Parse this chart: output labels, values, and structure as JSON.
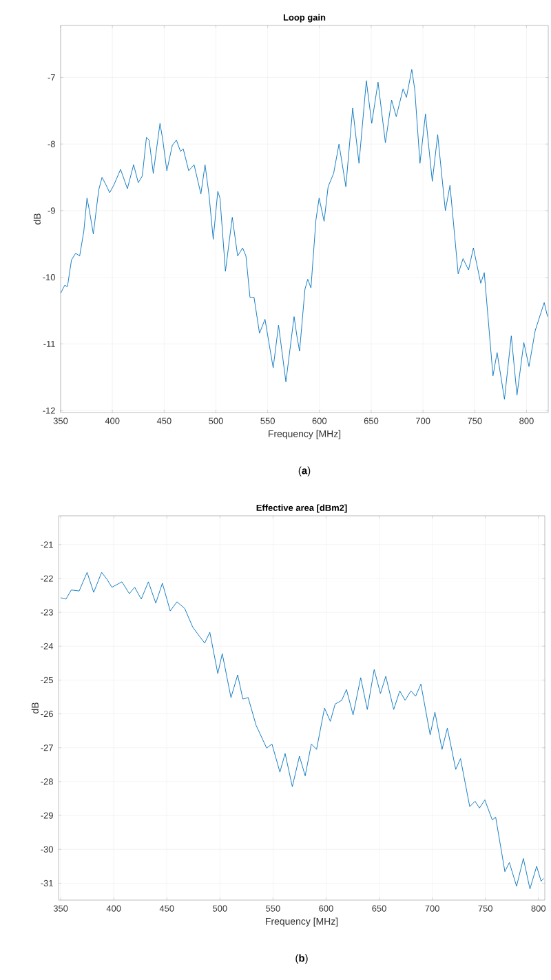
{
  "chart_data": [
    {
      "type": "line",
      "title": "Loop gain",
      "xlabel": "Frequency [MHz]",
      "ylabel": "dB",
      "color": "#0072bd",
      "grid": true,
      "annotations": [
        "(**a**)"
      ],
      "xlim": [
        350,
        821
      ],
      "ylim": [
        -12.03,
        -6.22
      ],
      "xticks": [
        350,
        400,
        450,
        500,
        550,
        600,
        650,
        700,
        750,
        800
      ],
      "yticks": [
        -12,
        -11,
        -10,
        -9,
        -8,
        -7
      ],
      "x": [
        350,
        354,
        356.6,
        360.5,
        364.5,
        368.4,
        372.4,
        375.5,
        377.6,
        381.6,
        386.8,
        390,
        393.4,
        397.4,
        401.3,
        407.9,
        414.5,
        420.5,
        425,
        428.9,
        432.9,
        435.5,
        439.5,
        446,
        448.7,
        452.6,
        457.9,
        461.8,
        465.8,
        468.4,
        473.7,
        478.9,
        485.5,
        489.5,
        493.4,
        497.4,
        501.8,
        503.9,
        509.2,
        515.8,
        521,
        525.8,
        529,
        532.9,
        536.8,
        542.1,
        547.4,
        555.3,
        560.5,
        567.6,
        575.5,
        578.2,
        580.8,
        586,
        588.7,
        591.8,
        596.6,
        599.7,
        604.5,
        608.4,
        613.7,
        618.9,
        625.5,
        632.1,
        638.2,
        645.3,
        650.5,
        656.6,
        663.7,
        669.7,
        674.2,
        680.8,
        684,
        689.2,
        692.1,
        697.1,
        702.4,
        709,
        714.2,
        721.6,
        726.1,
        734,
        738.7,
        744,
        748.7,
        755.8,
        759.2,
        767.6,
        771.6,
        778.7,
        785.3,
        790.8,
        797.4,
        802.4,
        808.4,
        817.1,
        820.3
      ],
      "values": [
        -10.24,
        -10.12,
        -10.14,
        -9.74,
        -9.64,
        -9.68,
        -9.31,
        -8.81,
        -8.98,
        -9.35,
        -8.69,
        -8.5,
        -8.6,
        -8.73,
        -8.62,
        -8.38,
        -8.67,
        -8.31,
        -8.58,
        -8.48,
        -7.9,
        -7.94,
        -8.44,
        -7.69,
        -7.94,
        -8.4,
        -8.02,
        -7.94,
        -8.11,
        -8.07,
        -8.4,
        -8.31,
        -8.75,
        -8.31,
        -8.77,
        -9.43,
        -8.71,
        -8.81,
        -9.91,
        -9.1,
        -9.68,
        -9.56,
        -9.68,
        -10.3,
        -10.3,
        -10.84,
        -10.63,
        -11.36,
        -10.72,
        -11.57,
        -10.59,
        -10.88,
        -11.11,
        -10.18,
        -10.03,
        -10.16,
        -9.14,
        -8.81,
        -9.16,
        -8.64,
        -8.44,
        -8.0,
        -8.64,
        -7.46,
        -8.29,
        -7.05,
        -7.69,
        -7.07,
        -7.98,
        -7.34,
        -7.59,
        -7.17,
        -7.3,
        -6.88,
        -7.19,
        -8.29,
        -7.55,
        -8.56,
        -7.86,
        -9.0,
        -8.62,
        -9.95,
        -9.72,
        -9.89,
        -9.56,
        -10.09,
        -9.93,
        -11.48,
        -11.13,
        -11.83,
        -10.88,
        -11.77,
        -10.98,
        -11.34,
        -10.8,
        -10.38,
        -10.59
      ]
    },
    {
      "type": "line",
      "title": "Effective area [dBm2]",
      "xlabel": "Frequency [MHz]",
      "ylabel": "dB",
      "color": "#0072bd",
      "grid": true,
      "annotations": [
        "(**b**)"
      ],
      "xlim": [
        348,
        806
      ],
      "ylim": [
        -31.5,
        -20.15
      ],
      "xticks": [
        350,
        400,
        450,
        500,
        550,
        600,
        650,
        700,
        750,
        800
      ],
      "yticks": [
        -31,
        -30,
        -29,
        -28,
        -27,
        -26,
        -25,
        -24,
        -23,
        -22,
        -21
      ],
      "x": [
        350,
        355,
        360,
        367.4,
        374.9,
        381.1,
        388.6,
        393.5,
        398.3,
        407.7,
        414.7,
        419.7,
        425.9,
        432.6,
        439.6,
        445.8,
        453.2,
        459.5,
        466.9,
        474.4,
        485.6,
        490.5,
        498,
        502.2,
        510.4,
        516.7,
        521.6,
        526.6,
        534.1,
        544,
        549,
        556.5,
        561.4,
        568.2,
        574.9,
        580.3,
        586.1,
        591,
        598.5,
        604,
        608.5,
        614.7,
        619.2,
        625.4,
        632.6,
        638.8,
        645.3,
        651.2,
        656.2,
        663.7,
        669.4,
        674.4,
        679.9,
        684.3,
        689.3,
        698,
        702.5,
        709.2,
        714.2,
        722.1,
        726.6,
        735.3,
        740.3,
        744.5,
        749.5,
        756.5,
        759.7,
        768.4,
        772.6,
        779.4,
        785.8,
        792,
        798.3,
        802.5,
        805
      ],
      "values": [
        -22.57,
        -22.61,
        -22.34,
        -22.37,
        -21.82,
        -22.41,
        -21.82,
        -22.02,
        -22.26,
        -22.1,
        -22.45,
        -22.26,
        -22.61,
        -22.1,
        -22.73,
        -22.14,
        -22.96,
        -22.69,
        -22.89,
        -23.44,
        -23.91,
        -23.59,
        -24.81,
        -24.22,
        -25.52,
        -24.85,
        -25.56,
        -25.52,
        -26.34,
        -27.01,
        -26.89,
        -27.72,
        -27.17,
        -28.15,
        -27.25,
        -27.83,
        -26.89,
        -27.05,
        -25.83,
        -26.22,
        -25.71,
        -25.6,
        -25.28,
        -26.03,
        -24.93,
        -25.87,
        -24.69,
        -25.4,
        -24.89,
        -25.87,
        -25.32,
        -25.6,
        -25.32,
        -25.48,
        -25.12,
        -26.62,
        -25.95,
        -27.05,
        -26.42,
        -27.64,
        -27.32,
        -28.74,
        -28.58,
        -28.78,
        -28.54,
        -29.13,
        -29.05,
        -30.66,
        -30.39,
        -31.09,
        -30.27,
        -31.17,
        -30.5,
        -30.94,
        -30.86
      ]
    }
  ]
}
